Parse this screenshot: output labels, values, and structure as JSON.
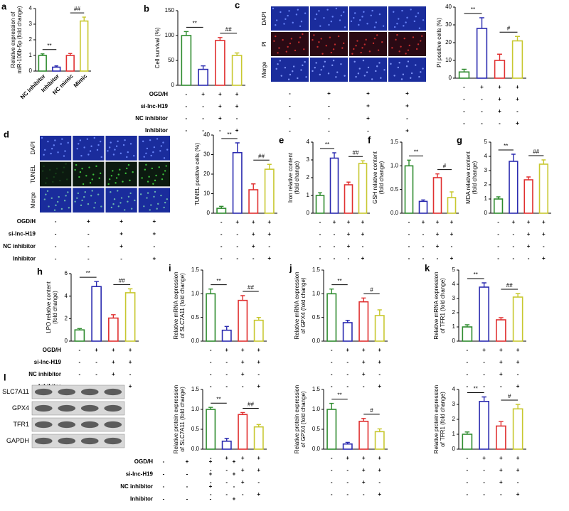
{
  "chart_data": [
    {
      "type": "bar",
      "panel": "a",
      "y_label": [
        "Relative expression of",
        "miR-106b-5p (fold change)"
      ],
      "categories": [
        "NC inhibitor",
        "Inhibitor",
        "NC mimic",
        "Mimic"
      ],
      "values": [
        1.0,
        0.25,
        1.0,
        3.2
      ],
      "errors": [
        0.1,
        0.08,
        0.12,
        0.25
      ],
      "ylim": [
        0,
        4
      ],
      "yticks": [
        0,
        1,
        2,
        3,
        4
      ],
      "significance": [
        "**",
        "##"
      ],
      "colors": [
        "#2e8b2e",
        "#2b2bb0",
        "#e03030",
        "#c8c830"
      ]
    },
    {
      "type": "bar",
      "panel": "b",
      "y_label": [
        "Cell survival (%)"
      ],
      "values": [
        100,
        32,
        90,
        60
      ],
      "errors": [
        8,
        7,
        6,
        5
      ],
      "ylim": [
        0,
        150
      ],
      "yticks": [
        0,
        50,
        100,
        150
      ],
      "significance": [
        "**",
        "##"
      ],
      "colors": [
        "#2e8b2e",
        "#2b2bb0",
        "#e03030",
        "#c8c830"
      ],
      "condition_labels": [
        "OGD/H",
        "si-lnc-H19",
        "NC inhibitor",
        "Inhibitor"
      ],
      "conditions": [
        [
          "-",
          "+",
          "+",
          "+"
        ],
        [
          "-",
          "-",
          "+",
          "+"
        ],
        [
          "-",
          "-",
          "+",
          "-"
        ],
        [
          "-",
          "-",
          "-",
          "+"
        ]
      ]
    },
    {
      "type": "bar",
      "y_label": [
        "PI positive cells (%)"
      ],
      "values": [
        3.5,
        28,
        10,
        21
      ],
      "errors": [
        1.5,
        6,
        3.5,
        2.5
      ],
      "ylim": [
        0,
        40
      ],
      "yticks": [
        0,
        10,
        20,
        30,
        40
      ],
      "significance": [
        "**",
        "#"
      ],
      "colors": [
        "#2e8b2e",
        "#2b2bb0",
        "#e03030",
        "#c8c830"
      ],
      "conditions": [
        [
          "-",
          "+",
          "+",
          "+"
        ],
        [
          "-",
          "-",
          "+",
          "+"
        ],
        [
          "-",
          "-",
          "+",
          "-"
        ],
        [
          "-",
          "-",
          "-",
          "+"
        ]
      ]
    },
    {
      "type": "bar",
      "y_label": [
        "TUNEL positive cells (%)"
      ],
      "values": [
        2.5,
        31,
        12,
        22.5
      ],
      "errors": [
        1,
        5,
        3,
        2.5
      ],
      "ylim": [
        0,
        40
      ],
      "yticks": [
        0,
        10,
        20,
        30,
        40
      ],
      "significance": [
        "**",
        "##"
      ],
      "colors": [
        "#2e8b2e",
        "#2b2bb0",
        "#e03030",
        "#c8c830"
      ],
      "conditions": [
        [
          "-",
          "+",
          "+",
          "+"
        ],
        [
          "-",
          "-",
          "+",
          "+"
        ],
        [
          "-",
          "-",
          "+",
          "-"
        ],
        [
          "-",
          "-",
          "-",
          "+"
        ]
      ]
    },
    {
      "type": "bar",
      "panel": "e",
      "y_label": [
        "Iron relative content",
        "(fold change)"
      ],
      "values": [
        1.0,
        3.1,
        1.6,
        2.8
      ],
      "errors": [
        0.15,
        0.3,
        0.15,
        0.15
      ],
      "ylim": [
        0,
        4
      ],
      "yticks": [
        0,
        1,
        2,
        3,
        4
      ],
      "significance": [
        "**",
        "##"
      ],
      "colors": [
        "#2e8b2e",
        "#2b2bb0",
        "#e03030",
        "#c8c830"
      ],
      "conditions": [
        [
          "-",
          "+",
          "+",
          "+"
        ],
        [
          "-",
          "-",
          "+",
          "+"
        ],
        [
          "-",
          "-",
          "+",
          "-"
        ],
        [
          "-",
          "-",
          "-",
          "+"
        ]
      ]
    },
    {
      "type": "bar",
      "panel": "f",
      "y_label": [
        "GSH relative content",
        "(fold change)"
      ],
      "values": [
        1.0,
        0.25,
        0.75,
        0.33
      ],
      "errors": [
        0.12,
        0.03,
        0.08,
        0.12
      ],
      "ylim": [
        0,
        1.5
      ],
      "yticks": [
        {
          "value": 0,
          "label": "0.0"
        },
        0.5,
        {
          "value": 1,
          "label": "1.0"
        },
        1.5
      ],
      "significance": [
        "**",
        "#"
      ],
      "colors": [
        "#2e8b2e",
        "#2b2bb0",
        "#e03030",
        "#c8c830"
      ],
      "conditions": [
        [
          "-",
          "+",
          "+",
          "+"
        ],
        [
          "-",
          "-",
          "+",
          "+"
        ],
        [
          "-",
          "-",
          "+",
          "-"
        ],
        [
          "-",
          "-",
          "-",
          "+"
        ]
      ]
    },
    {
      "type": "bar",
      "panel": "g",
      "y_label": [
        "MDA relative content",
        "(fold change)"
      ],
      "values": [
        1.0,
        3.65,
        2.35,
        3.45
      ],
      "errors": [
        0.15,
        0.5,
        0.2,
        0.3
      ],
      "ylim": [
        0,
        5
      ],
      "yticks": [
        0,
        1,
        2,
        3,
        4,
        5
      ],
      "significance": [
        "**",
        "##"
      ],
      "colors": [
        "#2e8b2e",
        "#2b2bb0",
        "#e03030",
        "#c8c830"
      ],
      "conditions": [
        [
          "-",
          "+",
          "+",
          "+"
        ],
        [
          "-",
          "-",
          "+",
          "+"
        ],
        [
          "-",
          "-",
          "+",
          "-"
        ],
        [
          "-",
          "-",
          "-",
          "+"
        ]
      ]
    },
    {
      "type": "bar",
      "panel": "h",
      "y_label": [
        "LPO relative content",
        "(fold change)"
      ],
      "values": [
        1.0,
        4.85,
        2.05,
        4.3
      ],
      "errors": [
        0.12,
        0.45,
        0.3,
        0.35
      ],
      "ylim": [
        0,
        6
      ],
      "yticks": [
        0,
        2,
        4,
        6
      ],
      "significance": [
        "**",
        "##"
      ],
      "colors": [
        "#2e8b2e",
        "#2b2bb0",
        "#e03030",
        "#c8c830"
      ],
      "condition_labels": [
        "OGD/H",
        "si-lnc-H19",
        "NC inhibitor",
        "Inhibitor"
      ],
      "conditions": [
        [
          "-",
          "+",
          "+",
          "+"
        ],
        [
          "-",
          "-",
          "+",
          "+"
        ],
        [
          "-",
          "-",
          "+",
          "-"
        ],
        [
          "-",
          "-",
          "-",
          "+"
        ]
      ]
    },
    {
      "type": "bar",
      "panel": "i",
      "y_label": [
        "Relative mRNA expression",
        "of SLC7A11 (fold change)"
      ],
      "values": [
        1.0,
        0.23,
        0.86,
        0.44
      ],
      "errors": [
        0.1,
        0.08,
        0.1,
        0.06
      ],
      "ylim": [
        0,
        1.5
      ],
      "yticks": [
        {
          "value": 0,
          "label": "0.0"
        },
        0.5,
        {
          "value": 1,
          "label": "1.0"
        },
        1.5
      ],
      "significance": [
        "**",
        "##"
      ],
      "colors": [
        "#2e8b2e",
        "#2b2bb0",
        "#e03030",
        "#c8c830"
      ],
      "conditions": [
        [
          "-",
          "+",
          "+",
          "+"
        ],
        [
          "-",
          "-",
          "+",
          "+"
        ],
        [
          "-",
          "-",
          "+",
          "-"
        ],
        [
          "-",
          "-",
          "-",
          "+"
        ]
      ]
    },
    {
      "type": "bar",
      "panel": "j",
      "y_label": [
        "Relative mRNA expression",
        "of GPX4 (fold change)"
      ],
      "values": [
        1.0,
        0.39,
        0.83,
        0.54
      ],
      "errors": [
        0.1,
        0.05,
        0.08,
        0.12
      ],
      "ylim": [
        0,
        1.5
      ],
      "yticks": [
        {
          "value": 0,
          "label": "0.0"
        },
        0.5,
        {
          "value": 1,
          "label": "1.0"
        },
        1.5
      ],
      "significance": [
        "**",
        "#"
      ],
      "colors": [
        "#2e8b2e",
        "#2b2bb0",
        "#e03030",
        "#c8c830"
      ],
      "conditions": [
        [
          "-",
          "+",
          "+",
          "+"
        ],
        [
          "-",
          "-",
          "+",
          "+"
        ],
        [
          "-",
          "-",
          "+",
          "-"
        ],
        [
          "-",
          "-",
          "-",
          "+"
        ]
      ]
    },
    {
      "type": "bar",
      "panel": "k",
      "y_label": [
        "Relative mRNA expression",
        "of TFR1 (fold change)"
      ],
      "values": [
        1.0,
        3.8,
        1.5,
        3.1
      ],
      "errors": [
        0.15,
        0.3,
        0.15,
        0.25
      ],
      "ylim": [
        0,
        5
      ],
      "yticks": [
        0,
        1,
        2,
        3,
        4,
        5
      ],
      "significance": [
        "**",
        "##"
      ],
      "colors": [
        "#2e8b2e",
        "#2b2bb0",
        "#e03030",
        "#c8c830"
      ],
      "conditions": [
        [
          "-",
          "+",
          "+",
          "+"
        ],
        [
          "-",
          "-",
          "+",
          "+"
        ],
        [
          "-",
          "-",
          "+",
          "-"
        ],
        [
          "-",
          "-",
          "-",
          "+"
        ]
      ]
    },
    {
      "type": "bar",
      "y_label": [
        "Relative protein expression",
        "of SLC7A11 (fold change)"
      ],
      "values": [
        1.0,
        0.2,
        0.87,
        0.56
      ],
      "errors": [
        0.05,
        0.07,
        0.05,
        0.06
      ],
      "ylim": [
        0,
        1.5
      ],
      "yticks": [
        {
          "value": 0,
          "label": "0.0"
        },
        0.5,
        {
          "value": 1,
          "label": "1.0"
        },
        1.5
      ],
      "significance": [
        "**",
        "##"
      ],
      "colors": [
        "#2e8b2e",
        "#2b2bb0",
        "#e03030",
        "#c8c830"
      ],
      "conditions": [
        [
          "-",
          "+",
          "+",
          "+"
        ],
        [
          "-",
          "-",
          "+",
          "+"
        ],
        [
          "-",
          "-",
          "+",
          "-"
        ],
        [
          "-",
          "-",
          "-",
          "+"
        ]
      ]
    },
    {
      "type": "bar",
      "y_label": [
        "Relative protein expression",
        "of GPX4 (fold change)"
      ],
      "values": [
        1.0,
        0.13,
        0.7,
        0.44
      ],
      "errors": [
        0.15,
        0.04,
        0.07,
        0.07
      ],
      "ylim": [
        0,
        1.5
      ],
      "yticks": [
        {
          "value": 0,
          "label": "0.0"
        },
        0.5,
        {
          "value": 1,
          "label": "1.0"
        },
        1.5
      ],
      "significance": [
        "**",
        "#"
      ],
      "colors": [
        "#2e8b2e",
        "#2b2bb0",
        "#e03030",
        "#c8c830"
      ],
      "conditions": [
        [
          "-",
          "+",
          "+",
          "+"
        ],
        [
          "-",
          "-",
          "+",
          "+"
        ],
        [
          "-",
          "-",
          "+",
          "-"
        ],
        [
          "-",
          "-",
          "-",
          "+"
        ]
      ]
    },
    {
      "type": "bar",
      "y_label": [
        "Relative protein expression",
        "of TFR1 (fold change)"
      ],
      "values": [
        1.0,
        3.2,
        1.55,
        2.7
      ],
      "errors": [
        0.15,
        0.3,
        0.3,
        0.3
      ],
      "ylim": [
        0,
        4
      ],
      "yticks": [
        0,
        1,
        2,
        3,
        4
      ],
      "significance": [
        "**",
        "#"
      ],
      "colors": [
        "#2e8b2e",
        "#2b2bb0",
        "#e03030",
        "#c8c830"
      ],
      "conditions": [
        [
          "-",
          "+",
          "+",
          "+"
        ],
        [
          "-",
          "-",
          "+",
          "+"
        ],
        [
          "-",
          "-",
          "+",
          "-"
        ],
        [
          "-",
          "-",
          "-",
          "+"
        ]
      ]
    }
  ],
  "images": [
    {
      "panel": "c",
      "row_labels": [
        "DAPI",
        "PI",
        "Merge"
      ],
      "conditions": [
        [
          "-",
          "+",
          "+",
          "+"
        ],
        [
          "-",
          "-",
          "+",
          "+"
        ],
        [
          "-",
          "-",
          "+",
          "-"
        ],
        [
          "-",
          "-",
          "-",
          "+"
        ]
      ]
    },
    {
      "panel": "d",
      "row_labels": [
        "DAPI",
        "TUNEL",
        "Merge"
      ],
      "condition_labels": [
        "OGD/H",
        "si-lnc-H19",
        "NC inhibitor",
        "Inhibitor"
      ],
      "conditions": [
        [
          "-",
          "+",
          "+",
          "+"
        ],
        [
          "-",
          "-",
          "+",
          "+"
        ],
        [
          "-",
          "-",
          "+",
          "-"
        ],
        [
          "-",
          "-",
          "-",
          "+"
        ]
      ]
    },
    {
      "panel": "l",
      "row_labels": [
        "SLC7A11",
        "GPX4",
        "TFR1",
        "GAPDH"
      ],
      "condition_labels": [
        "OGD/H",
        "si-lnc-H19",
        "NC inhibitor",
        "Inhibitor"
      ],
      "conditions": [
        [
          "-",
          "+",
          "+",
          "+"
        ],
        [
          "-",
          "-",
          "+",
          "+"
        ],
        [
          "-",
          "-",
          "+",
          "-"
        ],
        [
          "-",
          "-",
          "-",
          "+"
        ]
      ]
    }
  ]
}
